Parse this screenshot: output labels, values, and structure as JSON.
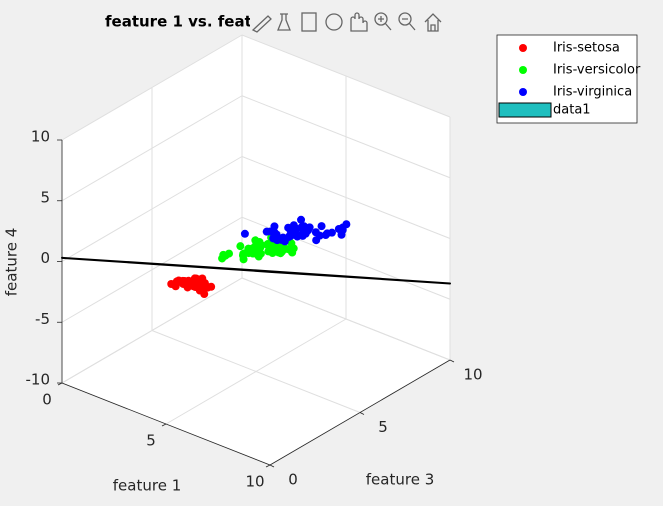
{
  "chart_data": {
    "type": "scatter3d",
    "title": "feature 1 vs. feat",
    "xlabel": "feature 1",
    "ylabel": "feature 3",
    "zlabel": "feature 4",
    "xlim": [
      0,
      10
    ],
    "xticks": [
      0,
      5,
      10
    ],
    "ylim": [
      0,
      10
    ],
    "yticks": [
      0,
      5,
      10
    ],
    "zlim": [
      -10,
      10
    ],
    "zticks": [
      -10,
      -5,
      0,
      5,
      10
    ],
    "grid": true,
    "legend": "northeastoutside",
    "series": [
      {
        "name": "Iris-setosa",
        "color": "#ff0000",
        "x": [
          5.1,
          4.9,
          4.7,
          4.6,
          5.0,
          5.4,
          4.6,
          5.0,
          4.4,
          4.9,
          5.4,
          4.8,
          4.8,
          4.3,
          5.8,
          5.7,
          5.4,
          5.1,
          5.7,
          5.1,
          5.4,
          5.1,
          4.6,
          5.1,
          4.8,
          5.0,
          5.0,
          5.2,
          5.2,
          4.7,
          4.8,
          5.4,
          5.2,
          5.5,
          4.9,
          5.0,
          5.5,
          4.9,
          4.4,
          5.1,
          5.0,
          4.5,
          4.4,
          5.0,
          5.1,
          4.8,
          5.1,
          4.6,
          5.3,
          5.0
        ],
        "y": [
          1.4,
          1.4,
          1.3,
          1.5,
          1.4,
          1.7,
          1.4,
          1.5,
          1.4,
          1.5,
          1.5,
          1.6,
          1.4,
          1.1,
          1.2,
          1.5,
          1.3,
          1.4,
          1.7,
          1.5,
          1.7,
          1.5,
          1.0,
          1.7,
          1.9,
          1.6,
          1.6,
          1.5,
          1.4,
          1.6,
          1.6,
          1.5,
          1.5,
          1.4,
          1.5,
          1.2,
          1.3,
          1.4,
          1.3,
          1.5,
          1.3,
          1.3,
          1.3,
          1.6,
          1.9,
          1.4,
          1.6,
          1.4,
          1.5,
          1.4
        ],
        "z": [
          0.2,
          0.2,
          0.2,
          0.2,
          0.2,
          0.4,
          0.3,
          0.2,
          0.2,
          0.1,
          0.2,
          0.2,
          0.1,
          0.1,
          0.2,
          0.4,
          0.4,
          0.3,
          0.3,
          0.3,
          0.2,
          0.4,
          0.2,
          0.5,
          0.2,
          0.2,
          0.4,
          0.2,
          0.2,
          0.2,
          0.2,
          0.4,
          0.1,
          0.2,
          0.2,
          0.2,
          0.2,
          0.1,
          0.2,
          0.2,
          0.3,
          0.3,
          0.2,
          0.6,
          0.4,
          0.3,
          0.2,
          0.2,
          0.2,
          0.2
        ]
      },
      {
        "name": "Iris-versicolor",
        "color": "#00ff00",
        "x": [
          7.0,
          6.4,
          6.9,
          5.5,
          6.5,
          5.7,
          6.3,
          4.9,
          6.6,
          5.2,
          5.0,
          5.9,
          6.0,
          6.1,
          5.6,
          6.7,
          5.6,
          5.8,
          6.2,
          5.6,
          5.9,
          6.1,
          6.3,
          6.1,
          6.4,
          6.6,
          6.8,
          6.7,
          6.0,
          5.7,
          5.5,
          5.5,
          5.8,
          6.0,
          5.4,
          6.0,
          6.7,
          6.3,
          5.6,
          5.5,
          5.5,
          6.1,
          5.8,
          5.0,
          5.6,
          5.7,
          5.7,
          6.2,
          5.1,
          5.7
        ],
        "y": [
          4.7,
          4.5,
          4.9,
          4.0,
          4.6,
          4.5,
          4.7,
          3.3,
          4.6,
          3.9,
          3.5,
          4.2,
          4.0,
          4.7,
          3.6,
          4.4,
          4.5,
          4.1,
          4.5,
          3.9,
          4.8,
          4.0,
          4.9,
          4.7,
          4.3,
          4.4,
          4.8,
          5.0,
          4.5,
          3.5,
          3.8,
          3.7,
          3.9,
          5.1,
          4.5,
          4.5,
          4.7,
          4.4,
          4.1,
          4.0,
          4.4,
          4.6,
          4.0,
          3.3,
          4.2,
          4.2,
          4.2,
          4.3,
          3.0,
          4.1
        ],
        "z": [
          1.4,
          1.5,
          1.5,
          1.3,
          1.5,
          1.3,
          1.6,
          1.0,
          1.3,
          1.4,
          1.0,
          1.5,
          1.0,
          1.4,
          1.3,
          1.4,
          1.5,
          1.0,
          1.5,
          1.1,
          1.8,
          1.3,
          1.5,
          1.2,
          1.3,
          1.4,
          1.4,
          1.7,
          1.5,
          1.0,
          1.1,
          1.0,
          1.2,
          1.6,
          1.5,
          1.6,
          1.5,
          1.3,
          1.3,
          1.3,
          1.2,
          1.4,
          1.2,
          1.0,
          1.3,
          1.2,
          1.3,
          1.3,
          1.1,
          1.3
        ]
      },
      {
        "name": "Iris-virginica",
        "color": "#0000ff",
        "x": [
          6.3,
          5.8,
          7.1,
          6.3,
          6.5,
          7.6,
          4.9,
          7.3,
          6.7,
          7.2,
          6.5,
          6.4,
          6.8,
          5.7,
          5.8,
          6.4,
          6.5,
          7.7,
          7.7,
          6.0,
          6.9,
          5.6,
          7.7,
          6.3,
          6.7,
          7.2,
          6.2,
          6.1,
          6.4,
          7.2,
          7.4,
          7.9,
          6.4,
          6.3,
          6.1,
          7.7,
          6.3,
          6.4,
          6.0,
          6.9,
          6.7,
          6.9,
          5.8,
          6.8,
          6.7,
          6.7,
          6.3,
          6.5,
          6.2,
          5.9
        ],
        "y": [
          6.0,
          5.1,
          5.9,
          5.6,
          5.8,
          6.6,
          4.5,
          6.3,
          5.8,
          6.1,
          5.1,
          5.3,
          5.5,
          5.0,
          5.1,
          5.3,
          5.5,
          6.7,
          6.9,
          5.0,
          5.7,
          4.9,
          6.7,
          4.9,
          5.7,
          6.0,
          4.8,
          4.9,
          5.6,
          5.8,
          6.1,
          6.4,
          5.6,
          5.1,
          5.6,
          6.1,
          5.6,
          5.5,
          4.8,
          5.4,
          5.6,
          5.1,
          5.1,
          5.9,
          5.7,
          5.2,
          5.0,
          5.2,
          5.4,
          5.1
        ],
        "z": [
          2.5,
          1.9,
          2.1,
          1.8,
          2.2,
          2.1,
          1.7,
          1.8,
          1.8,
          2.5,
          2.0,
          1.9,
          2.1,
          2.0,
          2.4,
          2.3,
          1.8,
          2.2,
          2.3,
          1.5,
          2.3,
          2.0,
          2.0,
          1.8,
          2.1,
          1.8,
          1.8,
          1.8,
          2.1,
          1.6,
          1.9,
          2.0,
          2.2,
          1.5,
          1.4,
          2.3,
          2.4,
          1.8,
          1.8,
          2.1,
          2.4,
          2.3,
          1.9,
          2.3,
          2.5,
          2.3,
          1.9,
          2.0,
          2.3,
          1.8
        ]
      }
    ],
    "surface": {
      "name": "data1",
      "color": "#1fbfbf",
      "edgecolor": "#000000",
      "x": [
        0,
        10
      ],
      "y": [
        0,
        10
      ],
      "z": [
        [
          0.3,
          -9.3
        ],
        [
          5.9,
          -3.7
        ]
      ]
    }
  }
}
